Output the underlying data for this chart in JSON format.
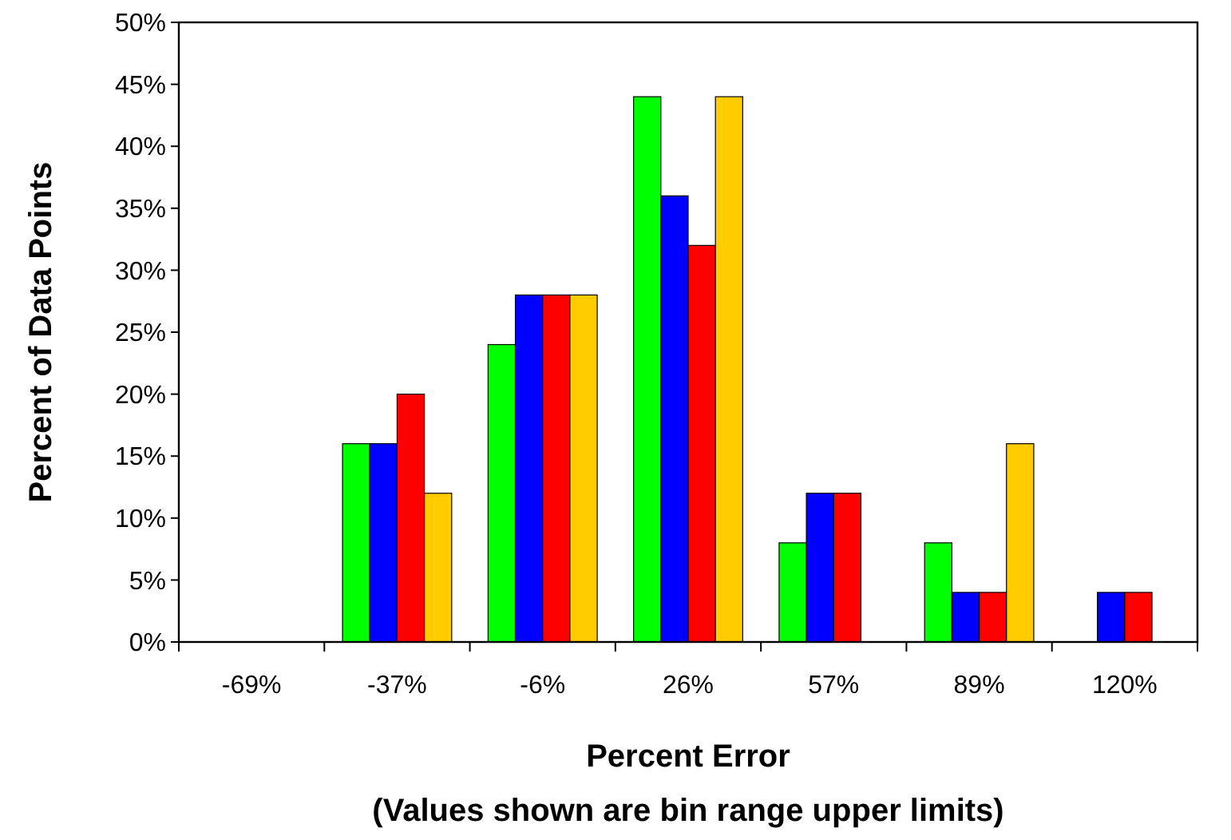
{
  "chart_data": {
    "type": "bar",
    "xlabel": "Percent Error",
    "ylabel": "Percent of Data Points",
    "annotations": [
      "(Values shown are bin range upper limits)"
    ],
    "categories": [
      "-69%",
      "-37%",
      "-6%",
      "26%",
      "57%",
      "89%",
      "120%"
    ],
    "series": [
      {
        "color": "#00ff00",
        "values": [
          0,
          16,
          24,
          44,
          8,
          8,
          0
        ]
      },
      {
        "color": "#0000ff",
        "values": [
          0,
          16,
          28,
          36,
          12,
          4,
          4
        ]
      },
      {
        "color": "#ff0000",
        "values": [
          0,
          20,
          28,
          32,
          12,
          4,
          4
        ]
      },
      {
        "color": "#ffcc00",
        "values": [
          0,
          12,
          28,
          44,
          0,
          16,
          0
        ]
      }
    ],
    "ylim": [
      0,
      50
    ],
    "yticks": [
      {
        "value": 0,
        "label": "0%"
      },
      {
        "value": 5,
        "label": "5%"
      },
      {
        "value": 10,
        "label": "10%"
      },
      {
        "value": 15,
        "label": "15%"
      },
      {
        "value": 20,
        "label": "20%"
      },
      {
        "value": 25,
        "label": "25%"
      },
      {
        "value": 30,
        "label": "30%"
      },
      {
        "value": 35,
        "label": "35%"
      },
      {
        "value": 40,
        "label": "40%"
      },
      {
        "value": 45,
        "label": "45%"
      },
      {
        "value": 50,
        "label": "50%"
      }
    ],
    "grid": false
  }
}
